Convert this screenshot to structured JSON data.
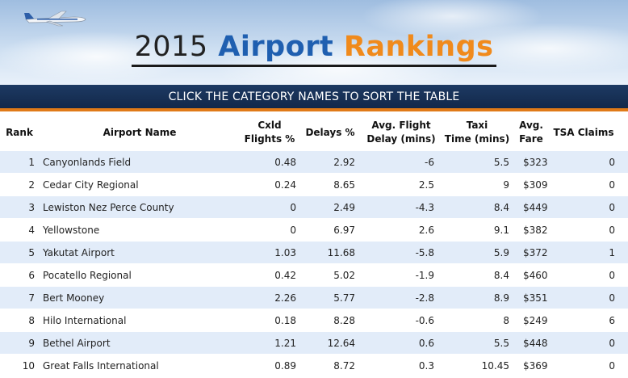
{
  "header": {
    "title_year": "2015",
    "title_airport": "Airport",
    "title_rankings": "Rankings"
  },
  "banner": {
    "text": "CLICK THE CATEGORY NAMES TO SORT THE TABLE"
  },
  "colors": {
    "banner_bg": "#1d3a63",
    "banner_stripe": "#e07a18",
    "title_blue": "#1f5fb0",
    "title_orange": "#f08a1c",
    "row_alt": "#e2ecf9"
  },
  "table": {
    "columns": [
      {
        "line1": "Rank",
        "line2": ""
      },
      {
        "line1": "Airport Name",
        "line2": ""
      },
      {
        "line1": "Cxld",
        "line2": "Flights %"
      },
      {
        "line1": "Delays %",
        "line2": ""
      },
      {
        "line1": "Avg. Flight",
        "line2": "Delay (mins)"
      },
      {
        "line1": "Taxi",
        "line2": "Time (mins)"
      },
      {
        "line1": "Avg.",
        "line2": "Fare"
      },
      {
        "line1": "TSA Claims",
        "line2": ""
      }
    ],
    "rows": [
      {
        "rank": "1",
        "name": "Canyonlands Field",
        "cxld": "0.48",
        "delays": "2.92",
        "avg_delay": "-6",
        "taxi": "5.5",
        "fare": "$323",
        "tsa": "0"
      },
      {
        "rank": "2",
        "name": "Cedar City Regional",
        "cxld": "0.24",
        "delays": "8.65",
        "avg_delay": "2.5",
        "taxi": "9",
        "fare": "$309",
        "tsa": "0"
      },
      {
        "rank": "3",
        "name": "Lewiston Nez Perce County",
        "cxld": "0",
        "delays": "2.49",
        "avg_delay": "-4.3",
        "taxi": "8.4",
        "fare": "$449",
        "tsa": "0"
      },
      {
        "rank": "4",
        "name": "Yellowstone",
        "cxld": "0",
        "delays": "6.97",
        "avg_delay": "2.6",
        "taxi": "9.1",
        "fare": "$382",
        "tsa": "0"
      },
      {
        "rank": "5",
        "name": "Yakutat Airport",
        "cxld": "1.03",
        "delays": "11.68",
        "avg_delay": "-5.8",
        "taxi": "5.9",
        "fare": "$372",
        "tsa": "1"
      },
      {
        "rank": "6",
        "name": "Pocatello Regional",
        "cxld": "0.42",
        "delays": "5.02",
        "avg_delay": "-1.9",
        "taxi": "8.4",
        "fare": "$460",
        "tsa": "0"
      },
      {
        "rank": "7",
        "name": "Bert Mooney",
        "cxld": "2.26",
        "delays": "5.77",
        "avg_delay": "-2.8",
        "taxi": "8.9",
        "fare": "$351",
        "tsa": "0"
      },
      {
        "rank": "8",
        "name": "Hilo International",
        "cxld": "0.18",
        "delays": "8.28",
        "avg_delay": "-0.6",
        "taxi": "8",
        "fare": "$249",
        "tsa": "6"
      },
      {
        "rank": "9",
        "name": "Bethel Airport",
        "cxld": "1.21",
        "delays": "12.64",
        "avg_delay": "0.6",
        "taxi": "5.5",
        "fare": "$448",
        "tsa": "0"
      },
      {
        "rank": "10",
        "name": "Great Falls International",
        "cxld": "0.89",
        "delays": "8.72",
        "avg_delay": "0.3",
        "taxi": "10.45",
        "fare": "$369",
        "tsa": "0"
      }
    ]
  }
}
